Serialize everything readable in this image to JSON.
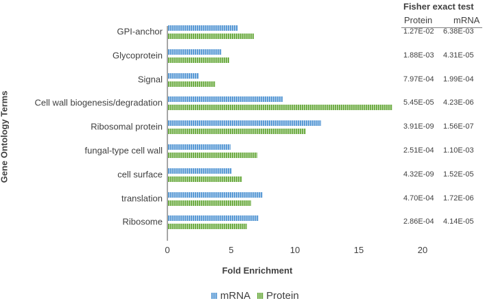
{
  "chart_data": {
    "type": "bar",
    "orientation": "horizontal",
    "title": "",
    "xlabel": "Fold Enrichment",
    "ylabel": "Gene Ontology Terms",
    "xlim": [
      0,
      20
    ],
    "xticks": [
      "0",
      "5",
      "10",
      "15",
      "20"
    ],
    "grid": false,
    "legend_position": "bottom",
    "categories": [
      "GPI-anchor",
      "Glycoprotein",
      "Signal",
      "Cell wall biogenesis/degradation",
      "Ribosomal protein",
      "fungal-type cell wall",
      "cell surface",
      "translation",
      "Ribosome"
    ],
    "series": [
      {
        "name": "mRNA",
        "color": "#5b9bd5",
        "values": [
          5.5,
          4.2,
          2.4,
          9.0,
          12.0,
          4.9,
          5.0,
          7.4,
          7.1
        ]
      },
      {
        "name": "Protein",
        "color": "#70ad47",
        "values": [
          6.7,
          4.8,
          3.7,
          17.6,
          10.8,
          7.0,
          5.8,
          6.5,
          6.2
        ]
      }
    ],
    "side_table": {
      "title": "Fisher exact test",
      "columns": [
        "Protein",
        "mRNA"
      ],
      "rows": [
        [
          "1.27E-02",
          "6.38E-03"
        ],
        [
          "1.88E-03",
          "4.31E-05"
        ],
        [
          "7.97E-04",
          "1.99E-04"
        ],
        [
          "5.45E-05",
          "4.23E-06"
        ],
        [
          "3.91E-09",
          "1.56E-07"
        ],
        [
          "2.51E-04",
          "1.10E-03"
        ],
        [
          "4.32E-09",
          "1.52E-05"
        ],
        [
          "4.70E-04",
          "1.72E-06"
        ],
        [
          "2.86E-04",
          "4.14E-05"
        ]
      ]
    }
  },
  "axes": {
    "ylabel": "Gene Ontology Terms",
    "xlabel": "Fold Enrichment",
    "ticks": [
      "0",
      "5",
      "10",
      "15",
      "20"
    ]
  },
  "legend": {
    "mrna": "mRNA",
    "protein": "Protein"
  },
  "table": {
    "title": "Fisher exact test",
    "col_protein": "Protein",
    "col_mrna": "mRNA"
  }
}
